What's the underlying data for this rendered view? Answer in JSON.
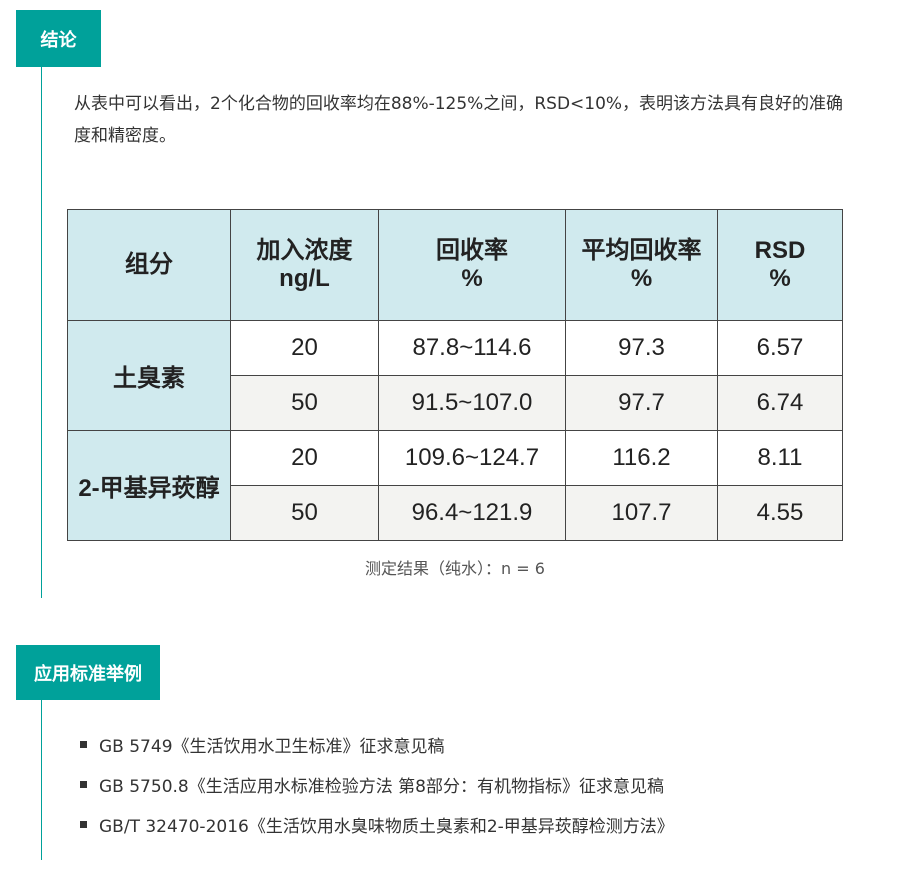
{
  "conclusion": {
    "title": "结论",
    "text": "从表中可以看出，2个化合物的回收率均在88%-125%之间，RSD<10%，表明该方法具有良好的准确度和精密度。"
  },
  "table": {
    "headers": [
      "组分",
      "加入浓度\nng/L",
      "回收率\n%",
      "平均回收率\n%",
      "RSD\n%"
    ],
    "groups": [
      {
        "name": "土臭素",
        "rows": [
          [
            "20",
            "87.8~114.6",
            "97.3",
            "6.57"
          ],
          [
            "50",
            "91.5~107.0",
            "97.7",
            "6.74"
          ]
        ]
      },
      {
        "name": "2-甲基异莰醇",
        "rows": [
          [
            "20",
            "109.6~124.7",
            "116.2",
            "8.11"
          ],
          [
            "50",
            "96.4~121.9",
            "107.7",
            "4.55"
          ]
        ]
      }
    ],
    "caption": "测定结果（纯水）：n = 6"
  },
  "standards": {
    "title": "应用标准举例",
    "items": [
      "GB 5749《生活饮用水卫生标准》征求意见稿",
      "GB 5750.8《生活应用水标准检验方法 第8部分：有机物指标》征求意见稿",
      "GB/T 32470-2016《生活饮用水臭味物质土臭素和2-甲基异莰醇检测方法》"
    ]
  },
  "colors": {
    "accent": "#00a19a",
    "header_bg": "#d0eaee"
  }
}
